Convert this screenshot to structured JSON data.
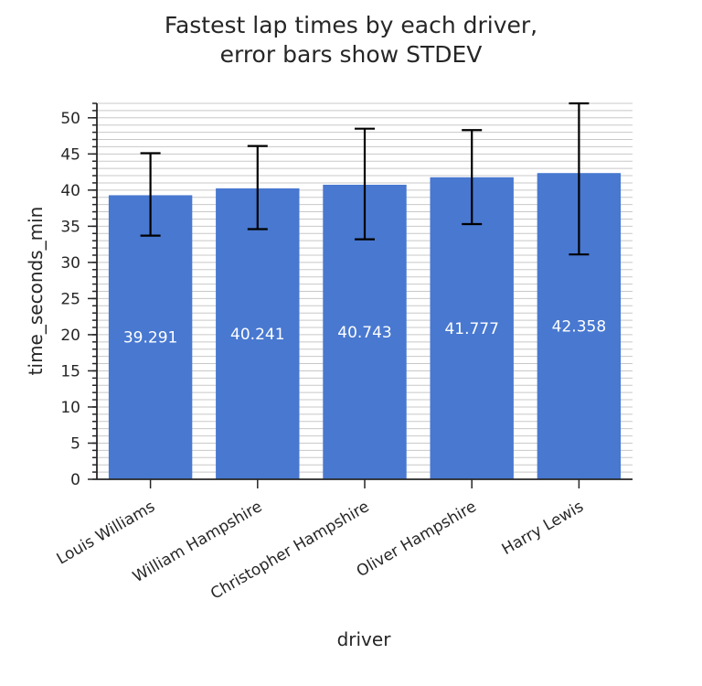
{
  "chart_data": {
    "type": "bar",
    "title_lines": [
      "Fastest lap times by each driver,",
      "error bars show STDEV"
    ],
    "xlabel": "driver",
    "ylabel": "time_seconds_min",
    "categories": [
      "Louis Williams",
      "William Hampshire",
      "Christopher Hampshire",
      "Oliver Hampshire",
      "Harry Lewis"
    ],
    "values": [
      39.291,
      40.241,
      40.743,
      41.777,
      42.358
    ],
    "value_labels": [
      "39.291",
      "40.241",
      "40.743",
      "41.777",
      "42.358"
    ],
    "error_low": [
      33.7,
      34.6,
      33.2,
      35.3,
      31.1
    ],
    "error_high": [
      45.1,
      46.1,
      48.5,
      48.3,
      52.0
    ],
    "ylim": [
      0,
      52
    ],
    "yticks": [
      0,
      5,
      10,
      15,
      20,
      25,
      30,
      35,
      40,
      45,
      50
    ],
    "minor_step": 1,
    "grid": true,
    "bar_color": "#4878d0",
    "error_color": "#000000",
    "grid_color": "#c8c8c8"
  }
}
